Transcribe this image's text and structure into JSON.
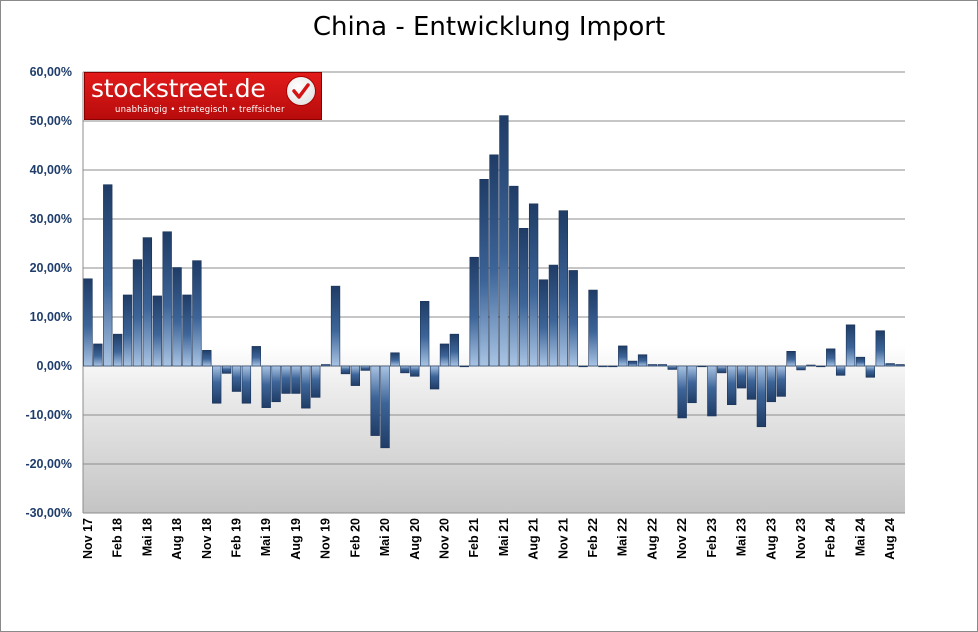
{
  "chart_data": {
    "type": "bar",
    "title": "China - Entwicklung Import",
    "ylim": [
      -30,
      60
    ],
    "y_ticks": [
      "60,00%",
      "50,00%",
      "40,00%",
      "30,00%",
      "20,00%",
      "10,00%",
      "0,00%",
      "-10,00%",
      "-20,00%",
      "-30,00%"
    ],
    "y_tick_values": [
      60,
      50,
      40,
      30,
      20,
      10,
      0,
      -10,
      -20,
      -30
    ],
    "x_labels": [
      "Nov 17",
      "Feb 18",
      "Mai 18",
      "Aug 18",
      "Nov 18",
      "Feb 19",
      "Mai 19",
      "Aug 19",
      "Nov 19",
      "Feb 20",
      "Mai 20",
      "Aug 20",
      "Nov 20",
      "Feb 21",
      "Mai 21",
      "Aug 21",
      "Nov 21",
      "Feb 22",
      "Mai 22",
      "Aug 22",
      "Nov 22",
      "Feb 23",
      "Mai 23",
      "Aug 23",
      "Nov 23",
      "Feb 24",
      "Mai 24",
      "Aug 24"
    ],
    "categories": [
      "Nov 17",
      "Dez 17",
      "Jan 18",
      "Feb 18",
      "Mär 18",
      "Apr 18",
      "Mai 18",
      "Jun 18",
      "Jul 18",
      "Aug 18",
      "Sep 18",
      "Okt 18",
      "Nov 18",
      "Dez 18",
      "Jan 19",
      "Feb 19",
      "Mär 19",
      "Apr 19",
      "Mai 19",
      "Jun 19",
      "Jul 19",
      "Aug 19",
      "Sep 19",
      "Okt 19",
      "Nov 19",
      "Dez 19",
      "Jan 20",
      "Feb 20",
      "Mär 20",
      "Apr 20",
      "Mai 20",
      "Jun 20",
      "Jul 20",
      "Aug 20",
      "Sep 20",
      "Okt 20",
      "Nov 20",
      "Dez 20",
      "Jan 21",
      "Feb 21",
      "Mär 21",
      "Apr 21",
      "Mai 21",
      "Jun 21",
      "Jul 21",
      "Aug 21",
      "Sep 21",
      "Okt 21",
      "Nov 21",
      "Dez 21",
      "Jan 22",
      "Feb 22",
      "Mär 22",
      "Apr 22",
      "Mai 22",
      "Jun 22",
      "Jul 22",
      "Aug 22",
      "Sep 22",
      "Okt 22",
      "Nov 22",
      "Dez 22",
      "Jan 23",
      "Feb 23",
      "Mär 23",
      "Apr 23",
      "Mai 23",
      "Jun 23",
      "Jul 23",
      "Aug 23",
      "Sep 23",
      "Okt 23",
      "Nov 23",
      "Dez 23",
      "Jan 24",
      "Feb 24",
      "Mär 24",
      "Apr 24",
      "Mai 24",
      "Jun 24",
      "Jul 24",
      "Aug 24",
      "Sep 24"
    ],
    "values": [
      17.8,
      4.5,
      37.0,
      6.5,
      14.5,
      21.7,
      26.2,
      14.3,
      27.4,
      20.1,
      14.5,
      21.5,
      3.2,
      -7.6,
      -1.5,
      -5.2,
      -7.6,
      4.0,
      -8.5,
      -7.3,
      -5.6,
      -5.6,
      -8.6,
      -6.4,
      0.3,
      16.3,
      -1.6,
      -4.0,
      -0.9,
      -14.2,
      -16.7,
      2.7,
      -1.4,
      -2.1,
      13.2,
      -4.7,
      4.5,
      6.5,
      0,
      22.2,
      38.1,
      43.1,
      51.1,
      36.7,
      28.1,
      33.1,
      17.6,
      20.6,
      31.7,
      19.5,
      0,
      15.5,
      -0.1,
      0,
      4.1,
      1.0,
      2.3,
      0.3,
      0.3,
      -0.7,
      -10.6,
      -7.5,
      0,
      -10.2,
      -1.4,
      -7.9,
      -4.5,
      -6.8,
      -12.4,
      -7.3,
      -6.2,
      3.0,
      -0.8,
      0.2,
      0,
      3.5,
      -1.9,
      8.4,
      1.8,
      -2.3,
      7.2,
      0.5,
      0.3
    ],
    "grid": true,
    "legend": "none"
  },
  "logo": {
    "name": "stockstreet.de",
    "tagline": "unabhängig • strategisch • treffsicher",
    "check_color": "#e21a1a"
  },
  "colors": {
    "bar_dark": "#2f4f7f",
    "bar_light": "#8fb0d6",
    "axis_label": "#1f3d6b"
  }
}
